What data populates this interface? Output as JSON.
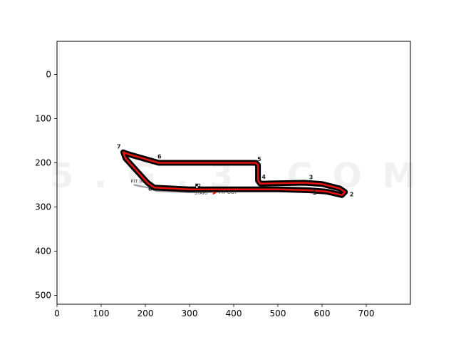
{
  "chart_data": {
    "type": "image",
    "xlim": [
      0,
      800
    ],
    "ylim": [
      520,
      -75
    ],
    "x_ticks": [
      0,
      100,
      200,
      300,
      400,
      500,
      600,
      700
    ],
    "y_ticks": [
      0,
      100,
      200,
      300,
      400,
      500
    ],
    "grid": false,
    "watermark": "5 . G . 3 . C O M",
    "track_outline": [
      [
        150,
        176
      ],
      [
        160,
        180
      ],
      [
        230,
        200
      ],
      [
        450,
        200
      ],
      [
        455,
        205
      ],
      [
        455,
        240
      ],
      [
        460,
        247
      ],
      [
        560,
        245
      ],
      [
        600,
        248
      ],
      [
        640,
        258
      ],
      [
        652,
        266
      ],
      [
        645,
        273
      ],
      [
        610,
        265
      ],
      [
        570,
        262
      ],
      [
        500,
        260
      ],
      [
        300,
        260
      ],
      [
        220,
        256
      ],
      [
        205,
        245
      ],
      [
        155,
        190
      ],
      [
        150,
        176
      ]
    ],
    "pit_lane": [
      [
        175,
        250
      ],
      [
        205,
        256
      ],
      [
        225,
        264
      ],
      [
        300,
        267
      ],
      [
        400,
        265
      ],
      [
        440,
        262
      ]
    ],
    "corners": [
      {
        "label": "1",
        "x": 583,
        "y": 272
      },
      {
        "label": "2",
        "x": 667,
        "y": 276
      },
      {
        "label": "3",
        "x": 575,
        "y": 237
      },
      {
        "label": "4",
        "x": 468,
        "y": 236
      },
      {
        "label": "5",
        "x": 458,
        "y": 196
      },
      {
        "label": "6",
        "x": 232,
        "y": 190
      },
      {
        "label": "7",
        "x": 140,
        "y": 168
      },
      {
        "label": "8",
        "x": 211,
        "y": 263
      }
    ],
    "annotations": [
      {
        "text": "PIT IN",
        "x": 182,
        "y": 245
      },
      {
        "text": "PIT OUT",
        "x": 387,
        "y": 270
      },
      {
        "text": "START",
        "x": 327,
        "y": 272
      }
    ],
    "colors": {
      "track": "#000000",
      "racing_line": "#e8120c",
      "pit_lane": "#9a9a9a",
      "start_arrow": "#e8120c"
    }
  }
}
